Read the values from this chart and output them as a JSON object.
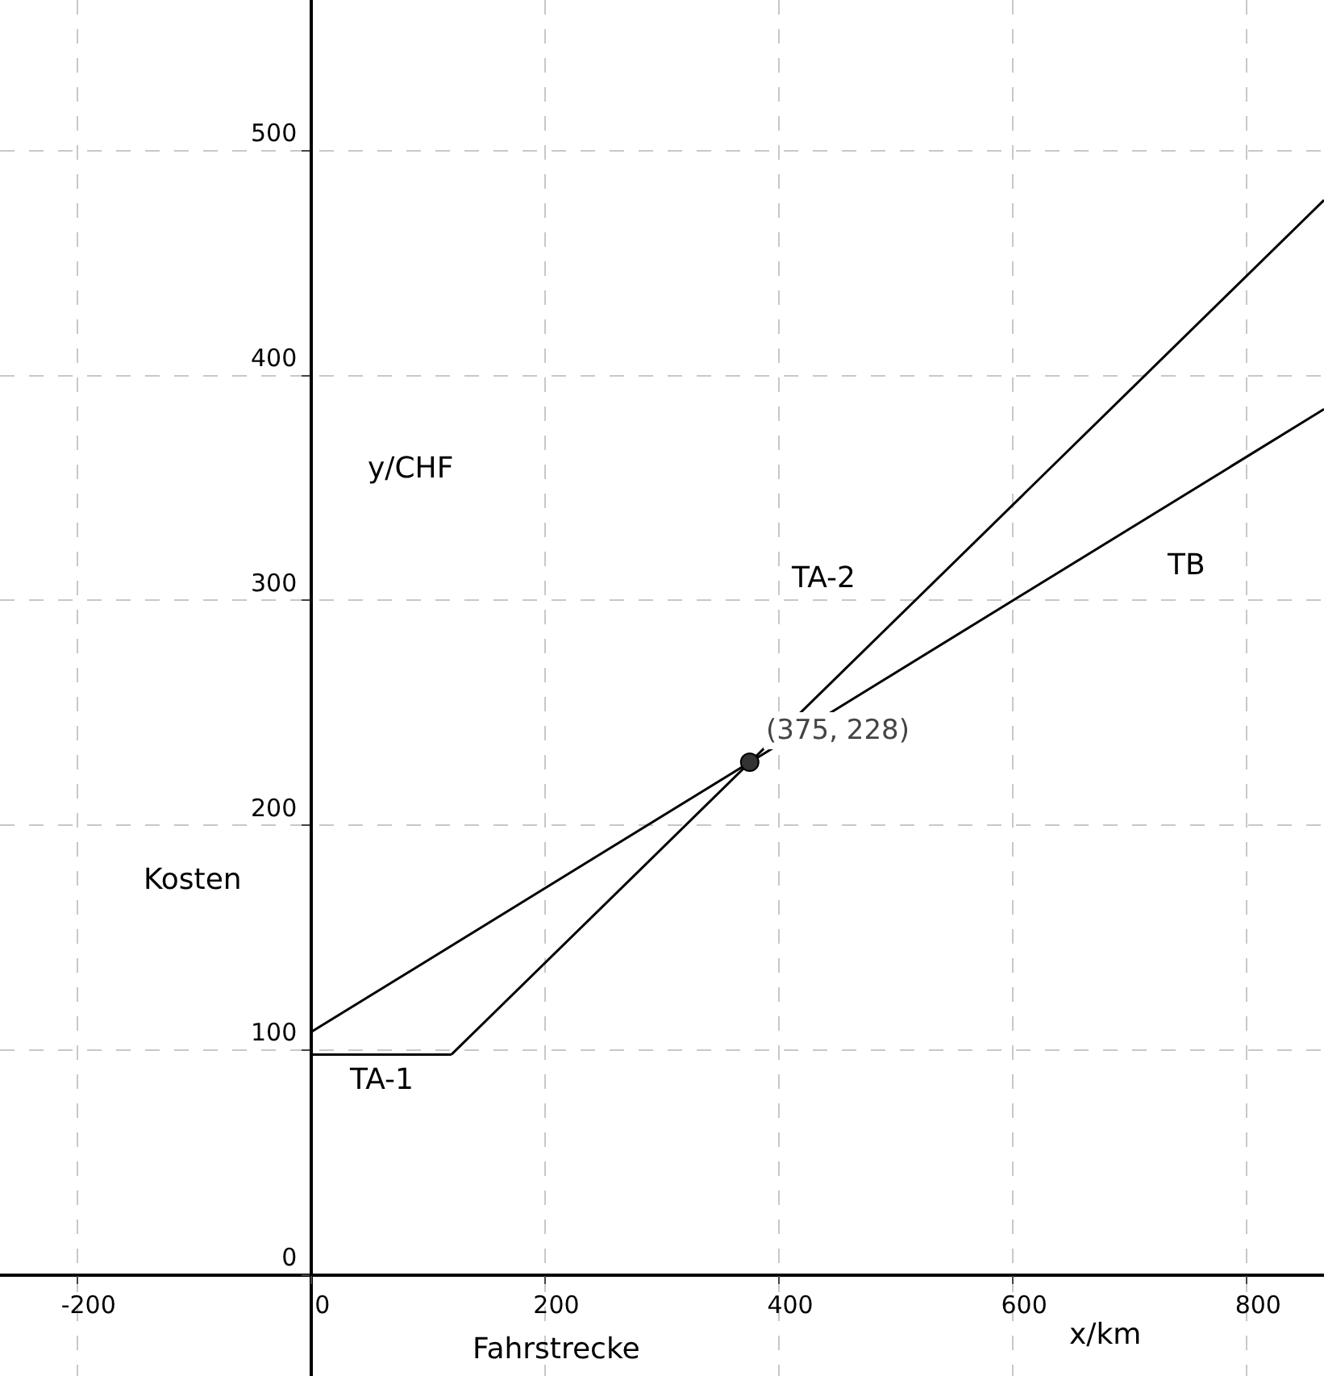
{
  "chart_data": {
    "type": "line",
    "xlabel": "x/km",
    "ylabel": "y/CHF",
    "annotations": [
      "Fahrstrecke",
      "Kosten",
      {
        "text": "(375, 228)",
        "x": 375,
        "y": 228
      }
    ],
    "series": [
      {
        "name": "TA-1",
        "color": "#000000",
        "x": [
          0,
          120
        ],
        "values": [
          98,
          98
        ]
      },
      {
        "name": "TA-2",
        "color": "#000000",
        "x": [
          120,
          866
        ],
        "values": [
          98,
          478
        ]
      },
      {
        "name": "TB",
        "color": "#000000",
        "x": [
          0,
          866
        ],
        "values": [
          108,
          385
        ]
      },
      {
        "type": "scatter",
        "color": "#333333",
        "x": [
          375
        ],
        "values": [
          228
        ],
        "marker": "circle"
      }
    ],
    "xlim": [
      -266,
      866
    ],
    "ylim": [
      -45,
      567
    ],
    "xticks": [
      -200,
      0,
      200,
      400,
      600,
      800
    ],
    "yticks": [
      0,
      100,
      200,
      300,
      400,
      500
    ],
    "grid": true,
    "legend": false,
    "line_style": "solid",
    "marker": "none"
  }
}
